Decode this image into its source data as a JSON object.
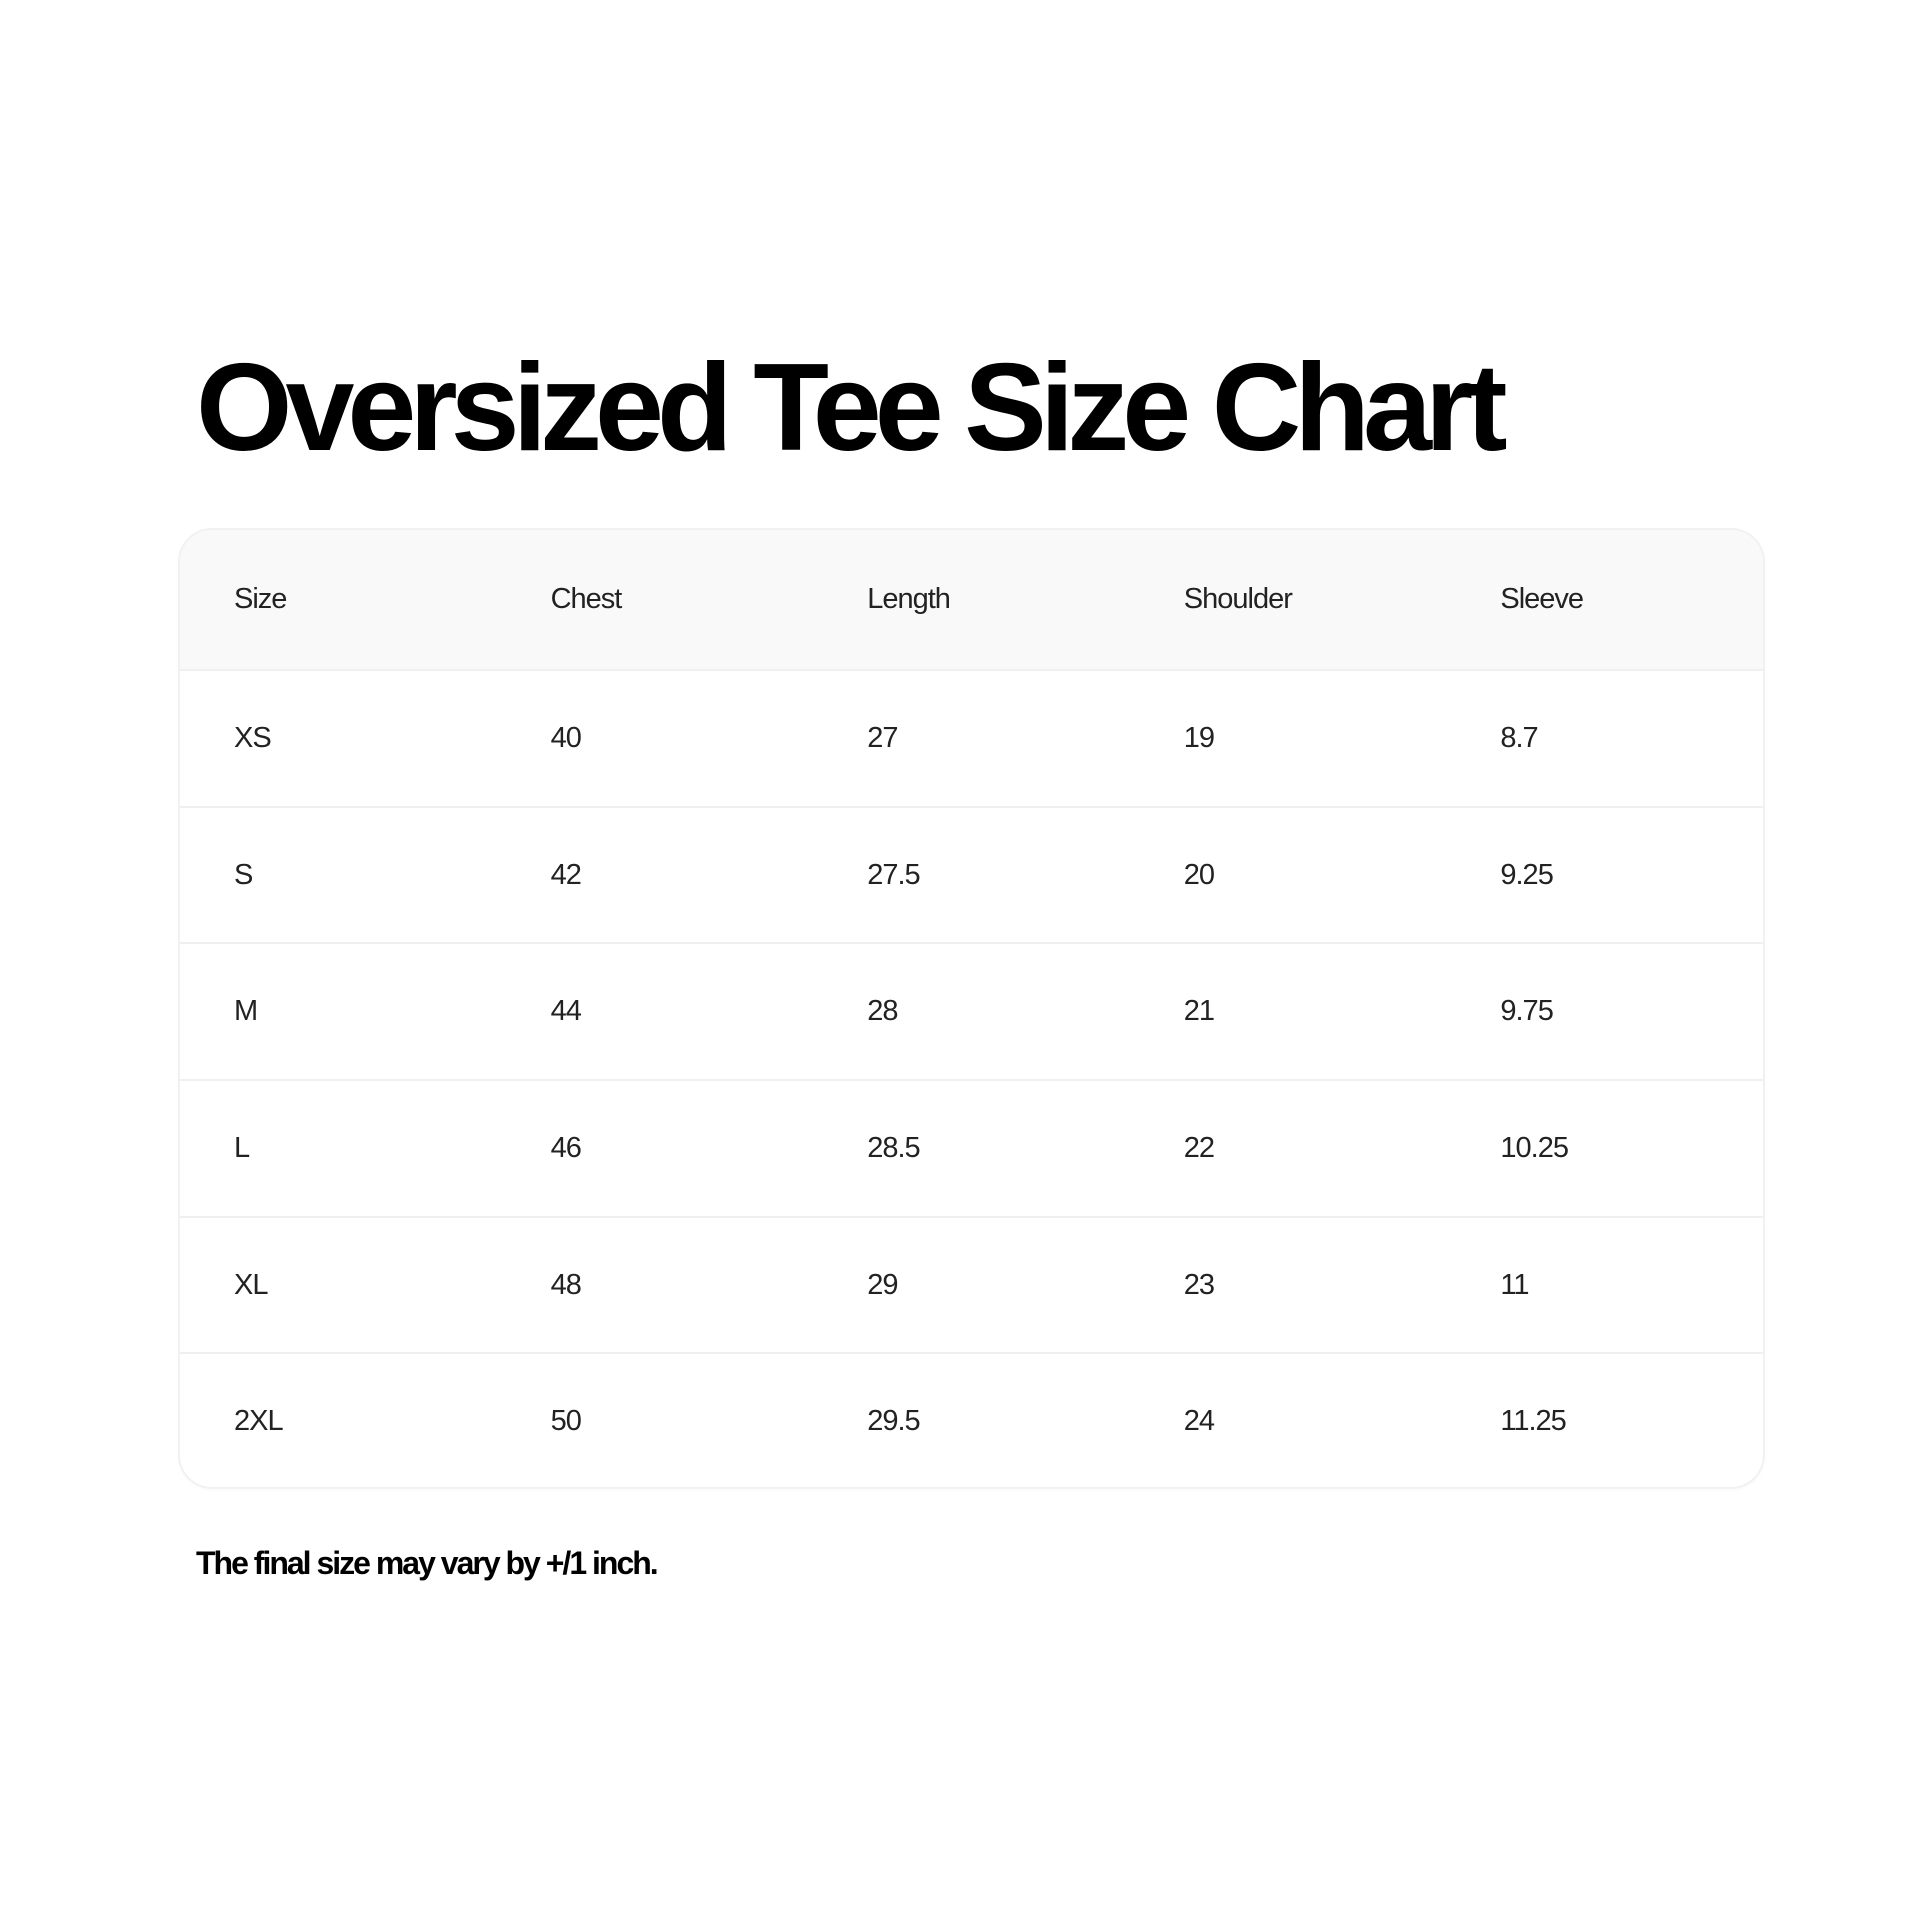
{
  "title": "Oversized Tee Size Chart",
  "table": {
    "headers": [
      "Size",
      "Chest",
      "Length",
      "Shoulder",
      "Sleeve"
    ],
    "rows": [
      [
        "XS",
        "40",
        "27",
        "19",
        "8.7"
      ],
      [
        "S",
        "42",
        "27.5",
        "20",
        "9.25"
      ],
      [
        "M",
        "44",
        "28",
        "21",
        "9.75"
      ],
      [
        "L",
        "46",
        "28.5",
        "22",
        "10.25"
      ],
      [
        "XL",
        "48",
        "29",
        "23",
        "11"
      ],
      [
        "2XL",
        "50",
        "29.5",
        "24",
        "11.25"
      ]
    ]
  },
  "note": "The final size may vary by +/1 inch."
}
